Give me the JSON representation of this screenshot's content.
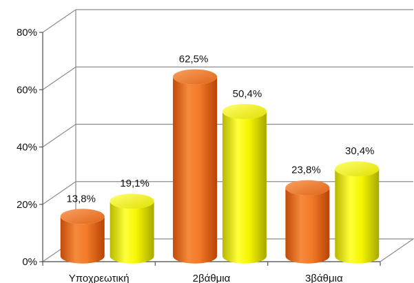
{
  "chart_data": {
    "type": "bar",
    "style": "3d-cylinder",
    "categories": [
      "Υποχρεωτική",
      "2βάθμια",
      "3βάθμια"
    ],
    "series": [
      {
        "values": [
          13.8,
          62.5,
          23.8
        ],
        "labels": [
          "13,8%",
          "62,5%",
          "23,8%"
        ],
        "color": "#f07a2a"
      },
      {
        "values": [
          19.1,
          50.4,
          30.4
        ],
        "labels": [
          "19,1%",
          "50,4%",
          "30,4%"
        ],
        "color": "#f2f200"
      }
    ],
    "ylim": [
      0,
      80
    ],
    "yticks": [
      {
        "value": 0,
        "label": "0%"
      },
      {
        "value": 20,
        "label": "20%"
      },
      {
        "value": 40,
        "label": "40%"
      },
      {
        "value": 60,
        "label": "60%"
      },
      {
        "value": 80,
        "label": "80%"
      }
    ],
    "grid": true,
    "legend": false,
    "title": "",
    "xlabel": "",
    "ylabel": ""
  }
}
